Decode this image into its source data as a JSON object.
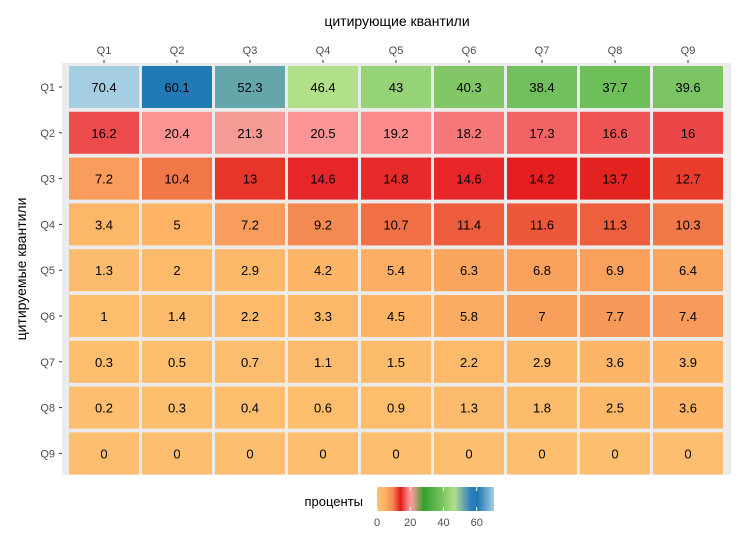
{
  "chart_data": {
    "type": "heatmap",
    "xlabel": "цитирующие квантили",
    "ylabel": "цитируемые квантили",
    "x_categories": [
      "Q1",
      "Q2",
      "Q3",
      "Q4",
      "Q5",
      "Q6",
      "Q7",
      "Q8",
      "Q9"
    ],
    "y_categories": [
      "Q1",
      "Q2",
      "Q3",
      "Q4",
      "Q5",
      "Q6",
      "Q7",
      "Q8",
      "Q9"
    ],
    "x_axis_position": "top",
    "values": [
      [
        70.4,
        60.1,
        52.3,
        46.4,
        43,
        40.3,
        38.4,
        37.7,
        39.6
      ],
      [
        16.2,
        20.4,
        21.3,
        20.5,
        19.2,
        18.2,
        17.3,
        16.6,
        16
      ],
      [
        7.2,
        10.4,
        13,
        14.6,
        14.8,
        14.6,
        14.2,
        13.7,
        12.7
      ],
      [
        3.4,
        5,
        7.2,
        9.2,
        10.7,
        11.4,
        11.6,
        11.3,
        10.3
      ],
      [
        1.3,
        2,
        2.9,
        4.2,
        5.4,
        6.3,
        6.8,
        6.9,
        6.4
      ],
      [
        1,
        1.4,
        2.2,
        3.3,
        4.5,
        5.8,
        7,
        7.7,
        7.4
      ],
      [
        0.3,
        0.5,
        0.7,
        1.1,
        1.5,
        2.2,
        2.9,
        3.6,
        3.9
      ],
      [
        0.2,
        0.3,
        0.4,
        0.6,
        0.9,
        1.3,
        1.8,
        2.5,
        3.6
      ],
      [
        0,
        0,
        0,
        0,
        0,
        0,
        0,
        0,
        0
      ]
    ],
    "legend": {
      "title": "проценты",
      "position": "bottom",
      "ticks": [
        0,
        20,
        40,
        60
      ],
      "range": [
        0,
        70.4
      ]
    },
    "palette": {
      "stops": [
        [
          0,
          "#fdbf6f"
        ],
        [
          0.07,
          "#fdb366"
        ],
        [
          0.14,
          "#f3844e"
        ],
        [
          0.2,
          "#e31a1c"
        ],
        [
          0.27,
          "#fb8a8a"
        ],
        [
          0.3,
          "#fb9a99"
        ],
        [
          0.4,
          "#33a02c"
        ],
        [
          0.55,
          "#74c15f"
        ],
        [
          0.66,
          "#b2df8a"
        ],
        [
          0.8,
          "#2f7fc0"
        ],
        [
          0.86,
          "#1f78b4"
        ],
        [
          1,
          "#a6cee3"
        ]
      ]
    },
    "panel_background": "#ebebeb",
    "grid": false
  }
}
